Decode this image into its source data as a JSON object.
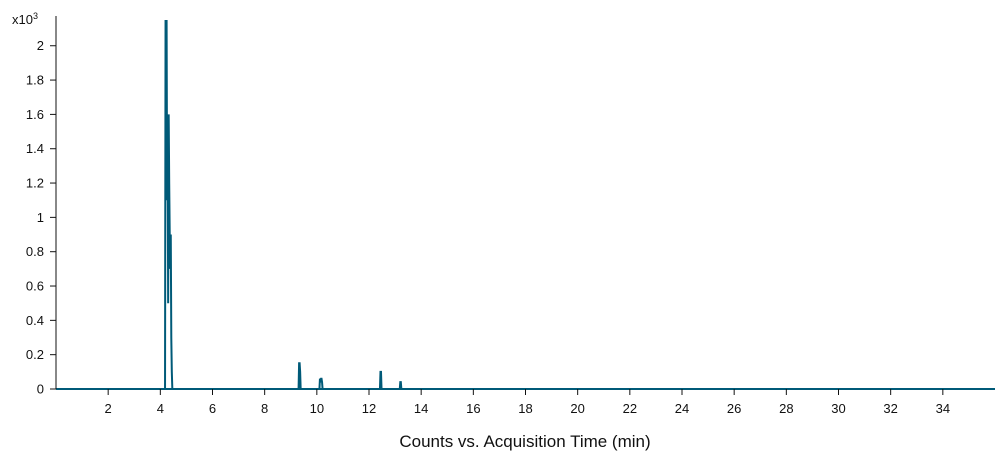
{
  "chart_data": {
    "type": "line",
    "title": "",
    "xlabel": "Counts vs. Acquisition Time (min)",
    "ylabel": "",
    "y_multiplier_base": "x10",
    "y_multiplier_exp": "3",
    "xlim": [
      0,
      36
    ],
    "ylim": [
      0,
      2.15
    ],
    "x_ticks": [
      2,
      4,
      6,
      8,
      10,
      12,
      14,
      16,
      18,
      20,
      22,
      24,
      26,
      28,
      30,
      32,
      34
    ],
    "y_ticks": [
      0,
      0.2,
      0.4,
      0.6,
      0.8,
      1,
      1.2,
      1.4,
      1.6,
      1.8,
      2
    ],
    "y_tick_labels": [
      "0",
      "0.2",
      "0.4",
      "0.6",
      "0.8",
      "1",
      "1.2",
      "1.4",
      "1.6",
      "1.8",
      "2"
    ],
    "grid": false,
    "line_color": "#005a78",
    "series": [
      {
        "x": [
          0,
          4.18,
          4.2,
          4.22,
          4.24,
          4.26,
          4.28,
          4.3,
          4.32,
          4.34,
          4.36,
          4.38,
          4.4,
          4.42,
          4.44,
          4.46,
          4.5,
          9.3,
          9.32,
          9.34,
          9.36,
          9.38,
          10.1,
          10.12,
          10.14,
          10.16,
          10.18,
          10.2,
          10.22,
          12.42,
          12.44,
          12.46,
          12.48,
          13.18,
          13.2,
          13.22,
          13.24,
          36
        ],
        "y": [
          0,
          0,
          2.2,
          1.3,
          2.2,
          1.1,
          1.4,
          0.5,
          1.6,
          1.2,
          0.9,
          0.7,
          0.9,
          0.3,
          0.1,
          0,
          0,
          0,
          0.15,
          0.15,
          0.1,
          0,
          0,
          0.06,
          0.05,
          0.06,
          0.06,
          0.04,
          0,
          0,
          0.1,
          0.1,
          0,
          0,
          0.04,
          0.04,
          0,
          0
        ]
      }
    ]
  }
}
